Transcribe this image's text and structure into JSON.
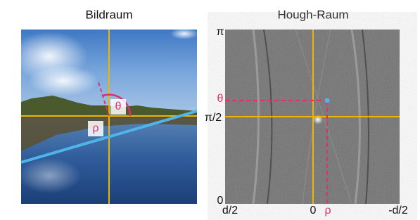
{
  "left_panel": {
    "title": "Bildraum",
    "theta_label": "θ",
    "rho_label": "ρ"
  },
  "right_panel": {
    "title": "Hough-Raum",
    "y_axis_labels": [
      "π",
      "π/2",
      "0"
    ],
    "x_axis_labels": [
      "d/2",
      "0",
      "-d/2"
    ],
    "theta_label": "θ",
    "rho_label": "ρ"
  }
}
